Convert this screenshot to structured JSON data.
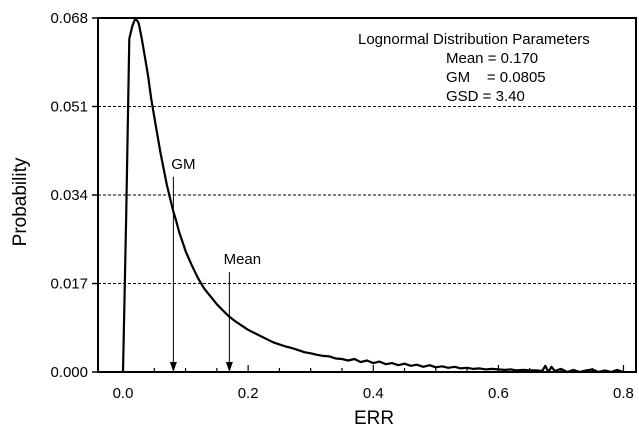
{
  "chart_data": {
    "type": "line",
    "title": "",
    "xlabel": "ERR",
    "ylabel": "Probability",
    "xlim": [
      -0.04,
      0.82
    ],
    "ylim": [
      0.0,
      0.068
    ],
    "x_ticks": [
      0.0,
      0.2,
      0.4,
      0.6,
      0.8
    ],
    "x_tick_labels": [
      "0.0",
      "0.2",
      "0.4",
      "0.6",
      "0.8"
    ],
    "y_ticks": [
      0.0,
      0.017,
      0.034,
      0.051,
      0.068
    ],
    "y_tick_labels": [
      "0.000",
      "0.017",
      "0.034",
      "0.051",
      "0.068"
    ],
    "grid": "horizontal-dashed",
    "legend": {
      "position": "top-right",
      "title": "Lognormal Distribution Parameters",
      "lines": [
        "Mean = 0.170",
        "GM    = 0.0805",
        "GSD = 3.40"
      ]
    },
    "annotations": [
      {
        "label": "GM",
        "x": 0.0805,
        "y_from": 0.0375,
        "y_to": 0.0
      },
      {
        "label": "Mean",
        "x": 0.17,
        "y_from": 0.0192,
        "y_to": 0.0
      }
    ],
    "series": [
      {
        "x": [
          0.0,
          0.005,
          0.01,
          0.015,
          0.02,
          0.025,
          0.03,
          0.035,
          0.04,
          0.045,
          0.05,
          0.055,
          0.06,
          0.065,
          0.07,
          0.075,
          0.08,
          0.085,
          0.09,
          0.095,
          0.1,
          0.11,
          0.12,
          0.13,
          0.14,
          0.15,
          0.16,
          0.17,
          0.18,
          0.19,
          0.2,
          0.21,
          0.22,
          0.23,
          0.24,
          0.25,
          0.26,
          0.27,
          0.28,
          0.29,
          0.3,
          0.31,
          0.32,
          0.33,
          0.34,
          0.35,
          0.36,
          0.37,
          0.38,
          0.39,
          0.4,
          0.41,
          0.42,
          0.43,
          0.44,
          0.45,
          0.46,
          0.47,
          0.48,
          0.49,
          0.5,
          0.51,
          0.52,
          0.53,
          0.54,
          0.55,
          0.56,
          0.57,
          0.58,
          0.59,
          0.6,
          0.61,
          0.62,
          0.63,
          0.64,
          0.65,
          0.66,
          0.67,
          0.675,
          0.68,
          0.685,
          0.69,
          0.7,
          0.71,
          0.72,
          0.73,
          0.74,
          0.75,
          0.76,
          0.77,
          0.78,
          0.79,
          0.8
        ],
        "values": [
          0.0,
          0.03,
          0.064,
          0.0665,
          0.068,
          0.067,
          0.064,
          0.0605,
          0.057,
          0.0525,
          0.049,
          0.0455,
          0.042,
          0.039,
          0.036,
          0.0335,
          0.031,
          0.029,
          0.0268,
          0.025,
          0.0232,
          0.0205,
          0.018,
          0.016,
          0.0145,
          0.013,
          0.0118,
          0.0106,
          0.0097,
          0.0089,
          0.0081,
          0.0075,
          0.0069,
          0.0063,
          0.0057,
          0.0053,
          0.0049,
          0.0046,
          0.0042,
          0.0038,
          0.0036,
          0.0033,
          0.0031,
          0.003,
          0.0026,
          0.0025,
          0.0022,
          0.0025,
          0.0019,
          0.0022,
          0.0017,
          0.002,
          0.0015,
          0.0017,
          0.0013,
          0.0016,
          0.0012,
          0.0014,
          0.001,
          0.0013,
          0.0009,
          0.0011,
          0.0008,
          0.001,
          0.0007,
          0.0008,
          0.0006,
          0.0007,
          0.0005,
          0.0006,
          0.0005,
          0.0004,
          0.0005,
          0.0003,
          0.0004,
          0.0003,
          0.0003,
          0.0002,
          0.0012,
          0.0,
          0.001,
          0.0002,
          0.0006,
          0.0,
          0.0004,
          0.0,
          0.0003,
          0.0005,
          0.0,
          0.0003,
          0.0,
          0.0004,
          0.0
        ]
      }
    ]
  }
}
